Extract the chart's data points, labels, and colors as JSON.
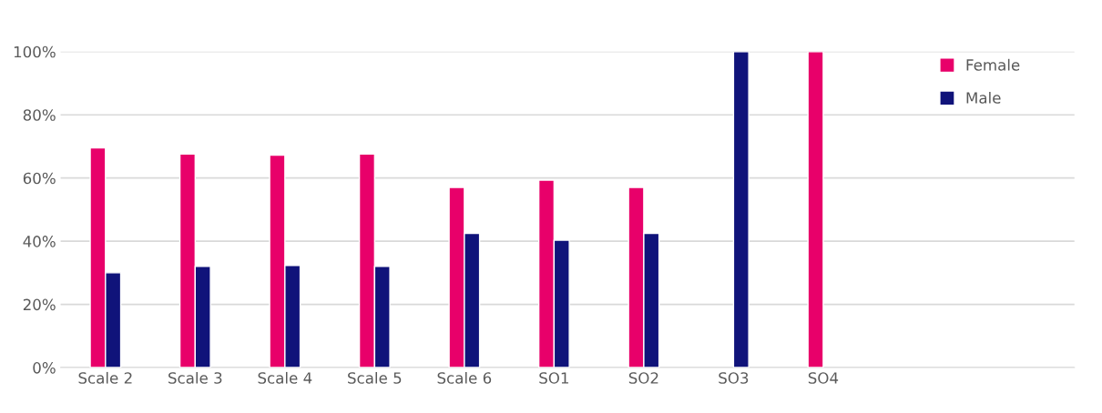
{
  "chart_data": {
    "type": "bar",
    "categories": [
      "Scale 2",
      "Scale 3",
      "Scale 4",
      "Scale 5",
      "Scale 6",
      "SO1",
      "SO2",
      "SO3",
      "SO4"
    ],
    "series": [
      {
        "name": "Female",
        "color": "#e8006a",
        "values": [
          69.5,
          67.6,
          67.2,
          67.6,
          57.0,
          59.3,
          57.0,
          null,
          100
        ]
      },
      {
        "name": "Male",
        "color": "#10137a",
        "values": [
          30.0,
          32.0,
          32.3,
          32.0,
          42.5,
          40.3,
          42.5,
          100,
          null
        ]
      }
    ],
    "ylim": [
      0,
      100
    ],
    "yticks": [
      {
        "value": 0,
        "label": "0%"
      },
      {
        "value": 20,
        "label": "20%"
      },
      {
        "value": 40,
        "label": "40%"
      },
      {
        "value": 60,
        "label": "60%"
      },
      {
        "value": 80,
        "label": "80%"
      },
      {
        "value": 100,
        "label": "100%"
      }
    ],
    "grid": "y",
    "legend": "top right"
  }
}
